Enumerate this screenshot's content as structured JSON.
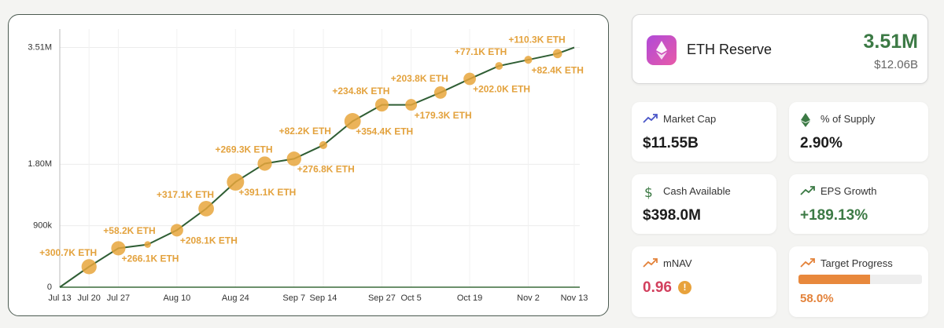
{
  "chart_data": {
    "type": "line",
    "x": [
      194,
      201,
      208,
      215,
      222,
      229,
      236,
      243,
      250,
      257,
      264,
      271,
      278,
      285,
      292,
      299,
      306,
      313,
      317
    ],
    "xlim": [
      194,
      317
    ],
    "xticks": [
      {
        "value": 194,
        "label": "Jul 13"
      },
      {
        "value": 201,
        "label": "Jul 20"
      },
      {
        "value": 208,
        "label": "Jul 27"
      },
      {
        "value": 222,
        "label": "Aug 10"
      },
      {
        "value": 236,
        "label": "Aug 24"
      },
      {
        "value": 250,
        "label": "Sep 7"
      },
      {
        "value": 257,
        "label": "Sep 14"
      },
      {
        "value": 271,
        "label": "Sep 27"
      },
      {
        "value": 278,
        "label": "Oct 5"
      },
      {
        "value": 292,
        "label": "Oct 19"
      },
      {
        "value": 306,
        "label": "Nov 2"
      },
      {
        "value": 317,
        "label": "Nov 13"
      }
    ],
    "ylim": [
      0,
      3780000
    ],
    "yticks": [
      0,
      {
        "value": 900000,
        "label": "900k"
      },
      {
        "value": 1800000,
        "label": "1.80M"
      },
      {
        "value": 3510000,
        "label": "3.51M"
      }
    ],
    "grid": true,
    "series": [
      {
        "color": "#2f5e34",
        "values": [
          0,
          300000,
          570000,
          625000,
          835000,
          1150000,
          1540000,
          1810000,
          1880000,
          2080000,
          2430000,
          2670000,
          2670000,
          2850000,
          3050000,
          3240000,
          3330000,
          3420000,
          3510000
        ],
        "sizes": [
          null,
          300700,
          266100,
          58200,
          208100,
          317100,
          391100,
          269300,
          276800,
          82200,
          354400,
          234800,
          179300,
          203800,
          202000,
          77100,
          82400,
          110300,
          null
        ],
        "size_labels": [
          null,
          "+300.7K ETH",
          "+266.1K ETH",
          "+58.2K ETH",
          "+208.1K ETH",
          "+317.1K ETH",
          "+391.1K ETH",
          "+269.3K ETH",
          "+276.8K ETH",
          "+82.2K ETH",
          "+354.4K ETH",
          "+234.8K ETH",
          "+179.3K ETH",
          "+203.8K ETH",
          "+202.0K ETH",
          "+77.1K ETH",
          "+82.4K ETH",
          "+110.3K ETH",
          null
        ],
        "size_color": "#e8a63c"
      }
    ]
  },
  "reserve": {
    "title": "ETH Reserve",
    "value": "3.51M",
    "usd": "$12.06B"
  },
  "metrics": [
    {
      "label": "Market Cap",
      "value": "$11.55B"
    },
    {
      "label": "% of Supply",
      "value": "2.90%"
    },
    {
      "label": "Cash Available",
      "value": "$398.0M"
    },
    {
      "label": "EPS Growth",
      "value": "+189.13%"
    },
    {
      "label": "mNAV",
      "value": "0.96"
    }
  ],
  "progress": {
    "label": "Target Progress",
    "value": 58.0,
    "value_label": "58.0%"
  }
}
